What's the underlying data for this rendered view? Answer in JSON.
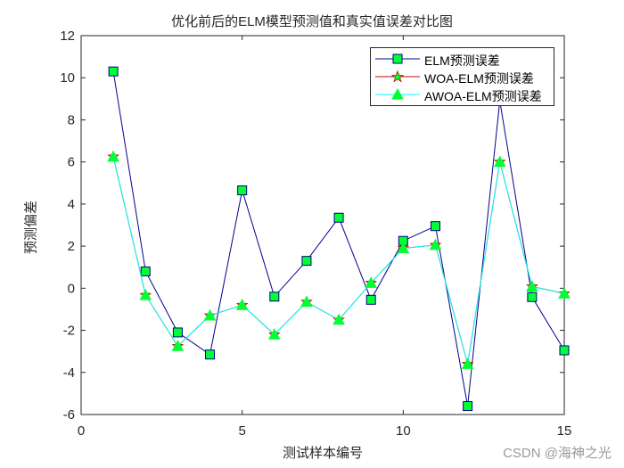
{
  "chart": {
    "title": "优化前后的ELM模型预测值和真实值误差对比图",
    "xlabel": "测试样本编号",
    "ylabel": "预测偏差",
    "watermark": "CSDN @海神之光",
    "legend": [
      {
        "label": "ELM预测误差",
        "color": "#00008b",
        "marker": "square",
        "marker_color": "#00ff33"
      },
      {
        "label": "WOA-ELM预测误差",
        "color": "#cc0000",
        "marker": "star",
        "marker_color": "#00ff33"
      },
      {
        "label": "AWOA-ELM预测误差",
        "color": "#00ffff",
        "marker": "triangle",
        "marker_color": "#00ff33"
      }
    ]
  },
  "chart_data": {
    "type": "line",
    "title": "优化前后的ELM模型预测值和真实值误差对比图",
    "xlabel": "测试样本编号",
    "ylabel": "预测偏差",
    "x": [
      1,
      2,
      3,
      4,
      5,
      6,
      7,
      8,
      9,
      10,
      11,
      12,
      13,
      14,
      15
    ],
    "xlim": [
      0,
      15
    ],
    "ylim": [
      -6,
      12
    ],
    "xticks": [
      0,
      5,
      10,
      15
    ],
    "yticks": [
      -6,
      -4,
      -2,
      0,
      2,
      4,
      6,
      8,
      10,
      12
    ],
    "grid": false,
    "legend_position": "upper right",
    "series": [
      {
        "name": "ELM预测误差",
        "color": "#00008b",
        "marker": "square",
        "values": [
          10.3,
          0.8,
          -2.1,
          -3.15,
          4.65,
          -0.4,
          1.3,
          3.35,
          -0.55,
          2.25,
          2.95,
          -5.6,
          8.9,
          -0.42,
          -2.95
        ]
      },
      {
        "name": "WOA-ELM预测误差",
        "color": "#cc0000",
        "marker": "star",
        "values": [
          6.25,
          -0.33,
          -2.75,
          -1.3,
          -0.8,
          -2.2,
          -0.65,
          -1.5,
          0.25,
          1.9,
          2.05,
          -3.6,
          6.0,
          0.08,
          -0.25
        ]
      },
      {
        "name": "AWOA-ELM预测误差",
        "color": "#00ffff",
        "marker": "triangle",
        "values": [
          6.25,
          -0.33,
          -2.75,
          -1.3,
          -0.8,
          -2.2,
          -0.65,
          -1.5,
          0.25,
          1.9,
          2.05,
          -3.6,
          6.0,
          0.08,
          -0.25
        ]
      }
    ]
  }
}
